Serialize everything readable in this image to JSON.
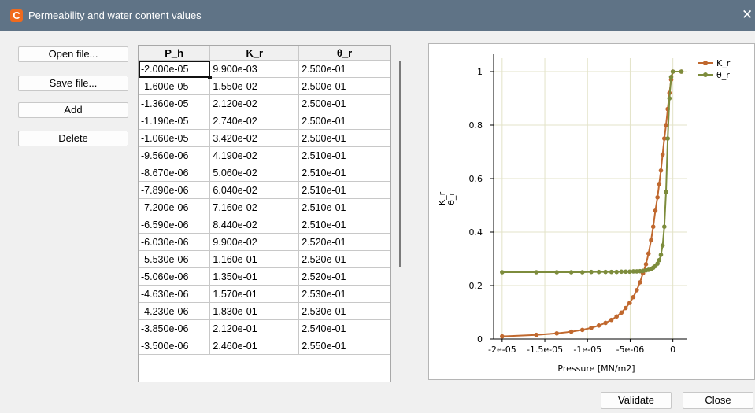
{
  "window": {
    "icon_glyph": "C",
    "title": "Permeability and water content values",
    "close_glyph": "✕"
  },
  "buttons": {
    "open": "Open file...",
    "save": "Save file...",
    "add": "Add",
    "delete": "Delete",
    "validate": "Validate",
    "close": "Close"
  },
  "table": {
    "headers": [
      "P_h",
      "K_r",
      "θ_r"
    ],
    "rows": [
      [
        "-2.000e-05",
        "9.900e-03",
        "2.500e-01"
      ],
      [
        "-1.600e-05",
        "1.550e-02",
        "2.500e-01"
      ],
      [
        "-1.360e-05",
        "2.120e-02",
        "2.500e-01"
      ],
      [
        "-1.190e-05",
        "2.740e-02",
        "2.500e-01"
      ],
      [
        "-1.060e-05",
        "3.420e-02",
        "2.500e-01"
      ],
      [
        "-9.560e-06",
        "4.190e-02",
        "2.510e-01"
      ],
      [
        "-8.670e-06",
        "5.060e-02",
        "2.510e-01"
      ],
      [
        "-7.890e-06",
        "6.040e-02",
        "2.510e-01"
      ],
      [
        "-7.200e-06",
        "7.160e-02",
        "2.510e-01"
      ],
      [
        "-6.590e-06",
        "8.440e-02",
        "2.510e-01"
      ],
      [
        "-6.030e-06",
        "9.900e-02",
        "2.520e-01"
      ],
      [
        "-5.530e-06",
        "1.160e-01",
        "2.520e-01"
      ],
      [
        "-5.060e-06",
        "1.350e-01",
        "2.520e-01"
      ],
      [
        "-4.630e-06",
        "1.570e-01",
        "2.530e-01"
      ],
      [
        "-4.230e-06",
        "1.830e-01",
        "2.530e-01"
      ],
      [
        "-3.850e-06",
        "2.120e-01",
        "2.540e-01"
      ],
      [
        "-3.500e-06",
        "2.460e-01",
        "2.550e-01"
      ]
    ]
  },
  "chart_data": {
    "type": "line",
    "title": "",
    "xlabel": "Pressure [MN/m2]",
    "ylabel": "K_r\nθ_r",
    "xlim": [
      -2.1e-05,
      1.6e-06
    ],
    "ylim": [
      0,
      1.05
    ],
    "x_ticks": [
      -2e-05,
      -1.5e-05,
      -1e-05,
      -5e-06,
      0
    ],
    "x_tick_labels": [
      "-2e-05",
      "-1.5e-05",
      "-1e-05",
      "-5e-06",
      "0"
    ],
    "y_ticks": [
      0,
      0.2,
      0.4,
      0.6,
      0.8,
      1
    ],
    "y_tick_labels": [
      "0",
      "0.2",
      "0.4",
      "0.6",
      "0.8",
      "1"
    ],
    "grid": true,
    "legend_position": "top-right",
    "series": [
      {
        "name": "K_r",
        "color": "#c0682e",
        "x": [
          -2e-05,
          -1.6e-05,
          -1.36e-05,
          -1.19e-05,
          -1.06e-05,
          -9.56e-06,
          -8.67e-06,
          -7.89e-06,
          -7.2e-06,
          -6.59e-06,
          -6.03e-06,
          -5.53e-06,
          -5.06e-06,
          -4.63e-06,
          -4.23e-06,
          -3.85e-06,
          -3.5e-06,
          -3.15e-06,
          -2.85e-06,
          -2.55e-06,
          -2.3e-06,
          -2.05e-06,
          -1.8e-06,
          -1.6e-06,
          -1.4e-06,
          -1.2e-06,
          -1e-06,
          -8e-07,
          -6e-07,
          -4e-07,
          -2e-07,
          0.0,
          1e-06
        ],
        "y": [
          0.0099,
          0.0155,
          0.0212,
          0.0274,
          0.0342,
          0.0419,
          0.0506,
          0.0604,
          0.0716,
          0.0844,
          0.099,
          0.116,
          0.135,
          0.157,
          0.183,
          0.212,
          0.246,
          0.28,
          0.32,
          0.37,
          0.42,
          0.48,
          0.53,
          0.58,
          0.63,
          0.69,
          0.75,
          0.8,
          0.86,
          0.92,
          0.97,
          1.0,
          1.0
        ]
      },
      {
        "name": "θ_r",
        "color": "#7d8c3c",
        "x": [
          -2e-05,
          -1.6e-05,
          -1.36e-05,
          -1.19e-05,
          -1.06e-05,
          -9.56e-06,
          -8.67e-06,
          -7.89e-06,
          -7.2e-06,
          -6.59e-06,
          -6.03e-06,
          -5.53e-06,
          -5.06e-06,
          -4.63e-06,
          -4.23e-06,
          -3.85e-06,
          -3.5e-06,
          -3.15e-06,
          -2.85e-06,
          -2.55e-06,
          -2.3e-06,
          -2.05e-06,
          -1.8e-06,
          -1.6e-06,
          -1.4e-06,
          -1.2e-06,
          -1e-06,
          -8e-07,
          -6e-07,
          -4e-07,
          -2e-07,
          0.0,
          1e-06
        ],
        "y": [
          0.25,
          0.25,
          0.25,
          0.25,
          0.25,
          0.251,
          0.251,
          0.251,
          0.251,
          0.251,
          0.252,
          0.252,
          0.252,
          0.253,
          0.253,
          0.254,
          0.255,
          0.257,
          0.259,
          0.262,
          0.267,
          0.273,
          0.282,
          0.295,
          0.315,
          0.35,
          0.42,
          0.55,
          0.75,
          0.9,
          0.98,
          1.0,
          1.0
        ]
      }
    ]
  }
}
